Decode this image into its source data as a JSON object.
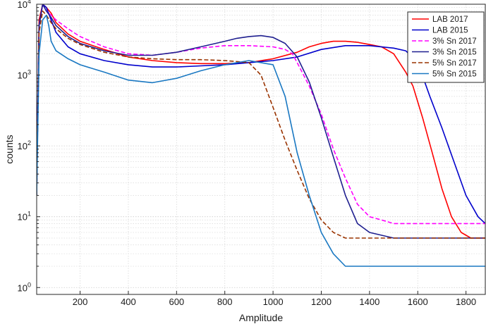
{
  "chart_data": {
    "type": "line",
    "title": "",
    "xlabel": "Amplitude",
    "ylabel": "counts",
    "xlim": [
      20,
      1880
    ],
    "ylim": [
      0.8,
      10000
    ],
    "yscale": "log",
    "x_ticks": [
      200,
      400,
      600,
      800,
      1000,
      1200,
      1400,
      1600,
      1800
    ],
    "x_tick_labels": [
      "200",
      "400",
      "600",
      "800",
      "1000",
      "1200",
      "1400",
      "1600",
      "1800"
    ],
    "y_ticks": [
      1,
      10,
      100,
      1000,
      10000
    ],
    "y_tick_labels": [
      {
        "base": "10",
        "exp": "0"
      },
      {
        "base": "10",
        "exp": "1"
      },
      {
        "base": "10",
        "exp": "2"
      },
      {
        "base": "10",
        "exp": "3"
      },
      {
        "base": "10",
        "exp": "4"
      }
    ],
    "grid": true,
    "legend_position": "top-right",
    "series": [
      {
        "name": "LAB 2017",
        "color": "#ff0000",
        "dash": "solid",
        "x": [
          20,
          30,
          45,
          60,
          80,
          100,
          150,
          200,
          300,
          400,
          500,
          600,
          700,
          800,
          900,
          1000,
          1100,
          1150,
          1200,
          1250,
          1300,
          1350,
          1400,
          1450,
          1500,
          1550,
          1580,
          1620,
          1660,
          1700,
          1740,
          1780,
          1820,
          1860,
          1880
        ],
        "y": [
          30,
          6000,
          10000,
          9000,
          7500,
          5500,
          3800,
          3000,
          2300,
          1800,
          1600,
          1500,
          1450,
          1450,
          1500,
          1700,
          2100,
          2500,
          2800,
          3000,
          3000,
          2900,
          2700,
          2500,
          2000,
          1100,
          700,
          250,
          80,
          25,
          10,
          6,
          5,
          5,
          5
        ]
      },
      {
        "name": "LAB 2015",
        "color": "#0000cc",
        "dash": "solid",
        "x": [
          20,
          30,
          45,
          60,
          80,
          100,
          150,
          200,
          300,
          400,
          500,
          600,
          700,
          800,
          900,
          1000,
          1100,
          1200,
          1300,
          1400,
          1500,
          1550,
          1600,
          1650,
          1700,
          1750,
          1800,
          1850,
          1880
        ],
        "y": [
          50,
          5000,
          10000,
          9000,
          6000,
          4000,
          2500,
          2000,
          1600,
          1400,
          1300,
          1300,
          1350,
          1400,
          1500,
          1600,
          1800,
          2300,
          2600,
          2600,
          2400,
          2200,
          1500,
          500,
          180,
          60,
          20,
          10,
          8
        ]
      },
      {
        "name": "3% Sn 2017",
        "color": "#ff00ff",
        "dash": "dashed",
        "x": [
          20,
          30,
          45,
          60,
          80,
          100,
          150,
          200,
          300,
          400,
          500,
          600,
          700,
          800,
          900,
          1000,
          1050,
          1080,
          1100,
          1150,
          1200,
          1250,
          1300,
          1350,
          1400,
          1450,
          1500,
          1600,
          1700,
          1800,
          1880
        ],
        "y": [
          20,
          5000,
          10000,
          8000,
          7000,
          6000,
          4500,
          3500,
          2500,
          2000,
          1900,
          2100,
          2400,
          2600,
          2600,
          2500,
          2300,
          2000,
          1500,
          700,
          280,
          90,
          35,
          15,
          10,
          9,
          8,
          8,
          8,
          8,
          8
        ]
      },
      {
        "name": "3% Sn 2015",
        "color": "#1f1f8f",
        "dash": "solid",
        "x": [
          20,
          30,
          45,
          60,
          80,
          100,
          150,
          200,
          300,
          400,
          500,
          600,
          700,
          800,
          850,
          900,
          950,
          1000,
          1050,
          1100,
          1150,
          1200,
          1250,
          1300,
          1350,
          1400,
          1500,
          1600,
          1700,
          1800,
          1880
        ],
        "y": [
          20,
          5000,
          10000,
          8000,
          6500,
          5000,
          3500,
          2800,
          2200,
          1900,
          1900,
          2100,
          2500,
          3000,
          3300,
          3500,
          3600,
          3400,
          2800,
          1800,
          800,
          250,
          70,
          20,
          8,
          6,
          5,
          5,
          5,
          5,
          5
        ]
      },
      {
        "name": "5% Sn 2017",
        "color": "#993300",
        "dash": "dashed",
        "x": [
          20,
          30,
          45,
          60,
          80,
          100,
          150,
          200,
          300,
          400,
          500,
          600,
          700,
          800,
          900,
          950,
          1000,
          1050,
          1100,
          1150,
          1200,
          1250,
          1300,
          1400,
          1500,
          1600,
          1700,
          1800,
          1880
        ],
        "y": [
          20,
          4000,
          8000,
          7000,
          5500,
          4500,
          3300,
          2700,
          2100,
          1800,
          1700,
          1650,
          1650,
          1600,
          1500,
          1000,
          350,
          120,
          45,
          18,
          9,
          6,
          5,
          5,
          5,
          5,
          5,
          5,
          5
        ]
      },
      {
        "name": "5% Sn 2015",
        "color": "#1a78c2",
        "dash": "solid",
        "x": [
          20,
          30,
          45,
          60,
          70,
          80,
          100,
          150,
          200,
          300,
          400,
          500,
          600,
          700,
          800,
          900,
          1000,
          1050,
          1100,
          1150,
          1200,
          1250,
          1300,
          1400,
          1500,
          1600,
          1700,
          1800,
          1880
        ],
        "y": [
          20,
          2000,
          6000,
          7000,
          5000,
          3000,
          2200,
          1700,
          1400,
          1100,
          850,
          780,
          900,
          1150,
          1400,
          1600,
          1400,
          500,
          80,
          20,
          6,
          3,
          2,
          2,
          2,
          2,
          2,
          2,
          2
        ]
      }
    ]
  }
}
